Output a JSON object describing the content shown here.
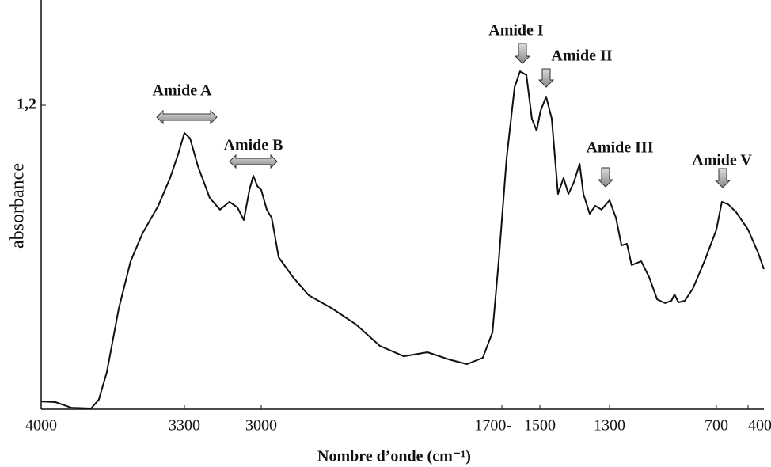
{
  "chart_data": {
    "type": "line",
    "y_label": "absorbance",
    "x_label": "Nombre d’onde (cm⁻¹)",
    "xlim": [
      4000,
      250
    ],
    "ylim": [
      0,
      1.6
    ],
    "xticks": [
      4000,
      3300,
      3000,
      {
        "value": 1700,
        "label": "1700-"
      },
      1500,
      1300,
      700,
      400
    ],
    "yticks": [
      {
        "value": 1.2,
        "label": "1,2"
      }
    ],
    "annotations": [
      "Amide A",
      "Amide B",
      "Amide I",
      "Amide II",
      "Amide III",
      "Amide V"
    ],
    "series": [
      {
        "color": "#111111",
        "x": [
          4000,
          3930,
          3853,
          3756,
          3718,
          3679,
          3621,
          3563,
          3505,
          3428,
          3370,
          3331,
          3300,
          3278,
          3247,
          3201,
          3161,
          3124,
          3093,
          3068,
          3046,
          3031,
          3015,
          3000,
          2970,
          2944,
          2932,
          2906,
          2829,
          2744,
          2615,
          2487,
          2359,
          2230,
          2102,
          1974,
          1888,
          1803,
          1751,
          1717,
          1675,
          1633,
          1604,
          1571,
          1542,
          1517,
          1498,
          1482,
          1466,
          1448,
          1432,
          1418,
          1402,
          1386,
          1375,
          1357,
          1341,
          1323,
          1300,
          1264,
          1233,
          1202,
          1176,
          1122,
          1078,
          1033,
          989,
          953,
          935,
          913,
          878,
          833,
          767,
          700,
          648,
          588,
          513,
          400,
          303,
          250
        ],
        "values": [
          0.031,
          0.028,
          0.006,
          0.003,
          0.038,
          0.147,
          0.397,
          0.584,
          0.694,
          0.803,
          0.913,
          1.006,
          1.091,
          1.069,
          0.959,
          0.834,
          0.788,
          0.819,
          0.797,
          0.747,
          0.866,
          0.922,
          0.881,
          0.866,
          0.788,
          0.756,
          0.709,
          0.6,
          0.522,
          0.45,
          0.397,
          0.334,
          0.25,
          0.209,
          0.225,
          0.194,
          0.178,
          0.203,
          0.303,
          0.584,
          0.991,
          1.272,
          1.334,
          1.319,
          1.147,
          1.1,
          1.178,
          1.234,
          1.147,
          0.85,
          0.913,
          0.85,
          0.897,
          0.969,
          0.85,
          0.772,
          0.803,
          0.788,
          0.825,
          0.756,
          0.647,
          0.653,
          0.569,
          0.584,
          0.522,
          0.434,
          0.419,
          0.428,
          0.453,
          0.422,
          0.428,
          0.475,
          0.584,
          0.709,
          0.819,
          0.809,
          0.778,
          0.709,
          0.616,
          0.553
        ]
      }
    ]
  }
}
